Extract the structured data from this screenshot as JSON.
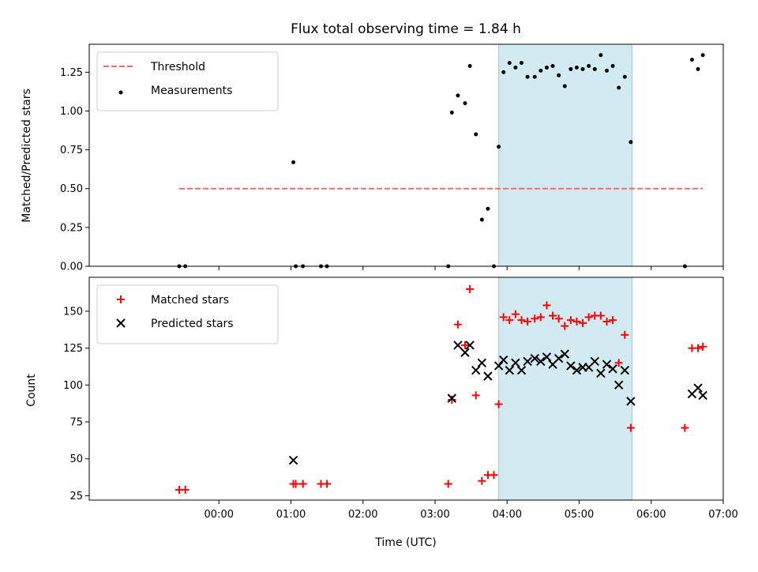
{
  "chart_data": [
    {
      "type": "scatter",
      "title": "Flux total observing time = 1.84 h",
      "ylabel": "Matched/Predicted stars",
      "xlabel": "",
      "ylim": [
        0,
        1.43
      ],
      "yticks": [
        "0.00",
        "0.25",
        "0.50",
        "0.75",
        "1.00",
        "1.25"
      ],
      "legend_position": "top-left",
      "highlight_span": [
        "03:53",
        "05:44"
      ],
      "highlight_color": "#add8e6",
      "threshold": {
        "name": "Threshold",
        "value": 0.5,
        "x_start": "-0:33",
        "x_end": "06:43",
        "color": "#ff6666",
        "style": "dashed"
      },
      "series": [
        {
          "name": "Measurements",
          "color": "#000000",
          "marker": "dot",
          "points": [
            [
              "-0:33",
              0.0
            ],
            [
              "-0:28",
              0.0
            ],
            [
              "01:02",
              0.67
            ],
            [
              "01:04",
              0.0
            ],
            [
              "01:10",
              0.0
            ],
            [
              "01:25",
              0.0
            ],
            [
              "01:30",
              0.0
            ],
            [
              "03:11",
              0.0
            ],
            [
              "03:14",
              0.99
            ],
            [
              "03:19",
              1.1
            ],
            [
              "03:25",
              1.05
            ],
            [
              "03:29",
              1.29
            ],
            [
              "03:34",
              0.85
            ],
            [
              "03:39",
              0.3
            ],
            [
              "03:44",
              0.37
            ],
            [
              "03:49",
              0.0
            ],
            [
              "03:53",
              0.77
            ],
            [
              "03:57",
              1.25
            ],
            [
              "04:02",
              1.31
            ],
            [
              "04:07",
              1.28
            ],
            [
              "04:12",
              1.31
            ],
            [
              "04:17",
              1.22
            ],
            [
              "04:23",
              1.22
            ],
            [
              "04:28",
              1.26
            ],
            [
              "04:33",
              1.28
            ],
            [
              "04:38",
              1.29
            ],
            [
              "04:43",
              1.23
            ],
            [
              "04:48",
              1.16
            ],
            [
              "04:53",
              1.27
            ],
            [
              "04:58",
              1.28
            ],
            [
              "05:03",
              1.27
            ],
            [
              "05:08",
              1.29
            ],
            [
              "05:13",
              1.27
            ],
            [
              "05:18",
              1.36
            ],
            [
              "05:23",
              1.26
            ],
            [
              "05:28",
              1.29
            ],
            [
              "05:33",
              1.15
            ],
            [
              "05:38",
              1.22
            ],
            [
              "05:43",
              0.8
            ],
            [
              "06:28",
              0.0
            ],
            [
              "06:34",
              1.33
            ],
            [
              "06:39",
              1.27
            ],
            [
              "06:43",
              1.36
            ]
          ]
        }
      ]
    },
    {
      "type": "scatter",
      "title": "",
      "ylabel": "Count",
      "xlabel": "Time (UTC)",
      "ylim": [
        22,
        173
      ],
      "yticks": [
        "25",
        "50",
        "75",
        "100",
        "125",
        "150"
      ],
      "xticks": [
        "00:00",
        "01:00",
        "02:00",
        "03:00",
        "04:00",
        "05:00",
        "06:00",
        "07:00"
      ],
      "legend_position": "top-left",
      "highlight_span": [
        "03:53",
        "05:44"
      ],
      "highlight_color": "#add8e6",
      "series": [
        {
          "name": "Matched stars",
          "color": "#ff0000",
          "marker": "plus",
          "points": [
            [
              "-0:33",
              29
            ],
            [
              "-0:28",
              29
            ],
            [
              "01:02",
              33
            ],
            [
              "01:04",
              33
            ],
            [
              "01:10",
              33
            ],
            [
              "01:25",
              33
            ],
            [
              "01:30",
              33
            ],
            [
              "03:11",
              33
            ],
            [
              "03:14",
              90
            ],
            [
              "03:19",
              141
            ],
            [
              "03:25",
              127
            ],
            [
              "03:29",
              165
            ],
            [
              "03:34",
              93
            ],
            [
              "03:39",
              35
            ],
            [
              "03:44",
              39
            ],
            [
              "03:49",
              39
            ],
            [
              "03:53",
              87
            ],
            [
              "03:57",
              146
            ],
            [
              "04:02",
              144
            ],
            [
              "04:07",
              148
            ],
            [
              "04:12",
              144
            ],
            [
              "04:17",
              143
            ],
            [
              "04:23",
              145
            ],
            [
              "04:28",
              146
            ],
            [
              "04:33",
              154
            ],
            [
              "04:38",
              147
            ],
            [
              "04:43",
              145
            ],
            [
              "04:48",
              140
            ],
            [
              "04:53",
              144
            ],
            [
              "04:58",
              143
            ],
            [
              "05:03",
              142
            ],
            [
              "05:08",
              146
            ],
            [
              "05:13",
              147
            ],
            [
              "05:18",
              147
            ],
            [
              "05:23",
              143
            ],
            [
              "05:28",
              144
            ],
            [
              "05:33",
              115
            ],
            [
              "05:38",
              134
            ],
            [
              "05:43",
              71
            ],
            [
              "06:28",
              71
            ],
            [
              "06:34",
              125
            ],
            [
              "06:39",
              125
            ],
            [
              "06:43",
              126
            ]
          ]
        },
        {
          "name": "Predicted stars",
          "color": "#000000",
          "marker": "x",
          "points": [
            [
              "01:02",
              49
            ],
            [
              "03:14",
              91
            ],
            [
              "03:19",
              127
            ],
            [
              "03:25",
              122
            ],
            [
              "03:29",
              127
            ],
            [
              "03:34",
              110
            ],
            [
              "03:39",
              115
            ],
            [
              "03:44",
              106
            ],
            [
              "03:53",
              113
            ],
            [
              "03:57",
              117
            ],
            [
              "04:02",
              110
            ],
            [
              "04:07",
              115
            ],
            [
              "04:12",
              110
            ],
            [
              "04:17",
              116
            ],
            [
              "04:23",
              118
            ],
            [
              "04:28",
              116
            ],
            [
              "04:33",
              119
            ],
            [
              "04:38",
              114
            ],
            [
              "04:43",
              118
            ],
            [
              "04:48",
              121
            ],
            [
              "04:53",
              113
            ],
            [
              "04:58",
              110
            ],
            [
              "05:03",
              112
            ],
            [
              "05:08",
              112
            ],
            [
              "05:13",
              116
            ],
            [
              "05:18",
              108
            ],
            [
              "05:23",
              114
            ],
            [
              "05:28",
              111
            ],
            [
              "05:33",
              100
            ],
            [
              "05:38",
              110
            ],
            [
              "05:43",
              89
            ],
            [
              "06:34",
              94
            ],
            [
              "06:39",
              98
            ],
            [
              "06:43",
              93
            ]
          ]
        }
      ]
    }
  ]
}
